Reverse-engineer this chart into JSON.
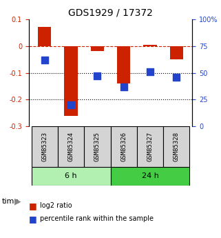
{
  "title": "GDS1929 / 17372",
  "samples": [
    "GSM85323",
    "GSM85324",
    "GSM85325",
    "GSM85326",
    "GSM85327",
    "GSM85328"
  ],
  "log2_ratio": [
    0.07,
    -0.26,
    -0.02,
    -0.14,
    0.005,
    -0.05
  ],
  "percentile_rank": [
    0.62,
    0.2,
    0.47,
    0.37,
    0.51,
    0.46
  ],
  "groups": [
    {
      "label": "6 h",
      "samples": [
        0,
        1,
        2
      ],
      "color": "#b2f0b2"
    },
    {
      "label": "24 h",
      "samples": [
        3,
        4,
        5
      ],
      "color": "#44cc44"
    }
  ],
  "ylim_left": [
    -0.3,
    0.1
  ],
  "ylim_right": [
    0,
    100
  ],
  "yticks_left": [
    -0.3,
    -0.2,
    -0.1,
    0.0,
    0.1
  ],
  "yticks_right": [
    0,
    25,
    50,
    75,
    100
  ],
  "ytick_labels_left": [
    "-0.3",
    "-0.2",
    "-0.1",
    "0",
    "0.1"
  ],
  "ytick_labels_right": [
    "0",
    "25",
    "50",
    "75",
    "100%"
  ],
  "hlines": [
    -0.1,
    -0.2
  ],
  "dashed_hline": 0.0,
  "bar_color": "#cc2200",
  "dot_color": "#2244cc",
  "bar_width": 0.5,
  "dot_size": 60,
  "left_tick_color": "#cc2200",
  "right_tick_color": "#2244cc",
  "group_box_color": "#aaaaaa",
  "group_box_light": "#d0d0d0",
  "legend_entries": [
    "log2 ratio",
    "percentile rank within the sample"
  ]
}
